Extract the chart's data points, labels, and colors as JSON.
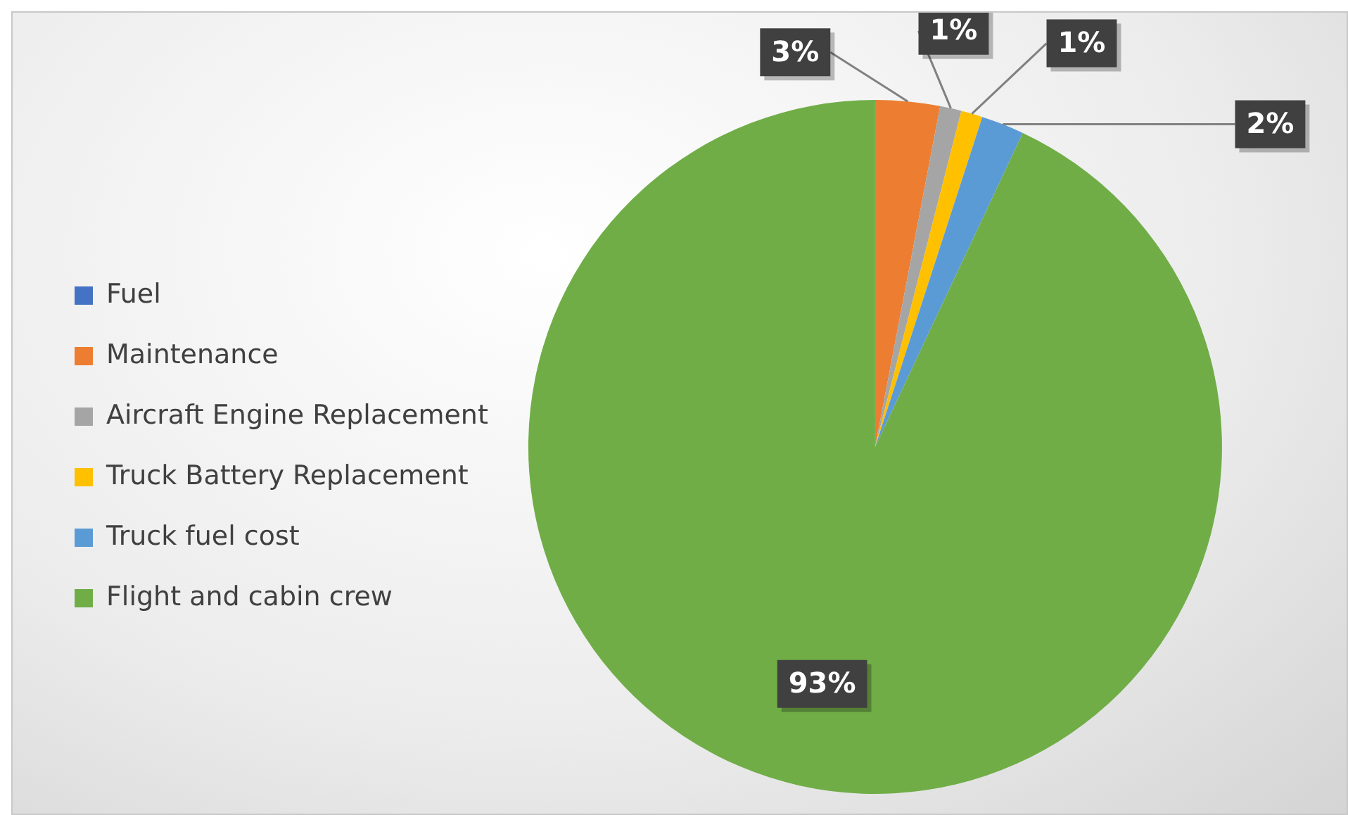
{
  "chart_data": {
    "type": "pie",
    "categories": [
      "Fuel",
      "Maintenance",
      "Aircraft Engine Replacement",
      "Truck Battery Replacement",
      "Truck fuel cost",
      "Flight and cabin crew"
    ],
    "values": [
      0,
      3,
      1,
      1,
      2,
      93
    ],
    "colors": [
      "#4472c4",
      "#ed7d31",
      "#a5a5a5",
      "#ffc000",
      "#5b9bd5",
      "#70ad47"
    ],
    "value_labels": [
      null,
      "3%",
      "1%",
      "1%",
      "2%",
      "93%"
    ],
    "legend": "left"
  }
}
